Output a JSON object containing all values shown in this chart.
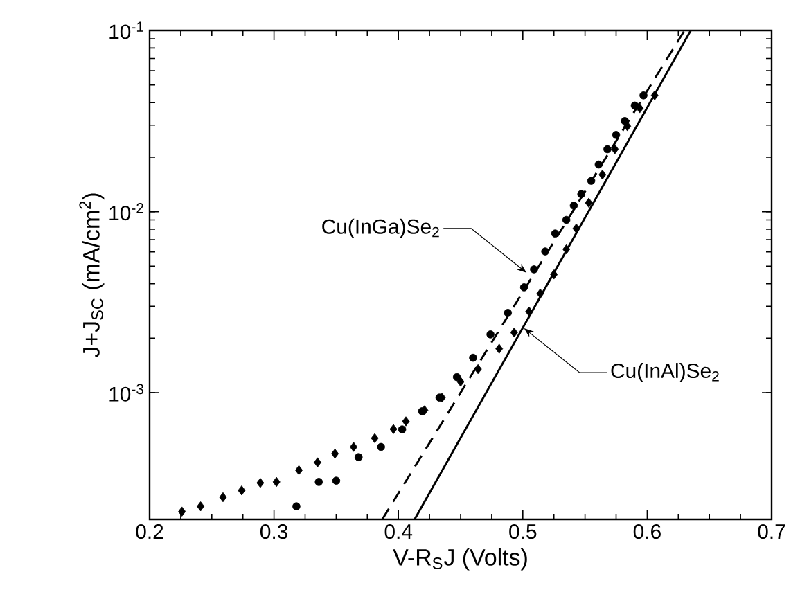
{
  "chart_data": {
    "type": "scatter",
    "xlabel": "V-R$_{S}$J (Volts)",
    "ylabel": "J+J$_{SC}$ (mA/cm$^{2}$)",
    "log": "y",
    "xlim": [
      0.2,
      0.7
    ],
    "ylim": [
      0.0002,
      0.1
    ],
    "xticks": [
      0.2,
      0.3,
      0.4,
      0.5,
      0.6,
      0.7
    ],
    "yticks": [
      {
        "value": 0.001,
        "label": "10$^{-3}$"
      },
      {
        "value": 0.01,
        "label": "10$^{-2}$"
      },
      {
        "value": 0.1,
        "label": "10$^{-1}$"
      }
    ],
    "grid": false,
    "series": [
      {
        "marker": "circle",
        "color": "#000000",
        "x": [
          0.318,
          0.336,
          0.35,
          0.368,
          0.386,
          0.403,
          0.419,
          0.433,
          0.447,
          0.46,
          0.474,
          0.488,
          0.501,
          0.509,
          0.518,
          0.526,
          0.535,
          0.541,
          0.547,
          0.555,
          0.561,
          0.568,
          0.575,
          0.582,
          0.59,
          0.597
        ],
        "values": [
          0.000236,
          0.000322,
          0.000327,
          0.000441,
          0.000502,
          0.000627,
          0.00079,
          0.00094,
          0.00122,
          0.00156,
          0.0021,
          0.00276,
          0.00382,
          0.0048,
          0.00603,
          0.00757,
          0.009,
          0.0108,
          0.0125,
          0.0148,
          0.0182,
          0.0221,
          0.0265,
          0.0316,
          0.0385,
          0.0438
        ]
      },
      {
        "marker": "diamond",
        "color": "#000000",
        "x": [
          0.226,
          0.241,
          0.259,
          0.274,
          0.289,
          0.302,
          0.32,
          0.335,
          0.349,
          0.364,
          0.381,
          0.396,
          0.406,
          0.421,
          0.435,
          0.45,
          0.464,
          0.481,
          0.493,
          0.505,
          0.514,
          0.525,
          0.535,
          0.543,
          0.553,
          0.564,
          0.574,
          0.584,
          0.594,
          0.606
        ],
        "values": [
          0.000221,
          0.000236,
          0.000265,
          0.000289,
          0.000318,
          0.000322,
          0.000374,
          0.000413,
          0.000461,
          0.000502,
          0.000561,
          0.00063,
          0.000695,
          0.0008,
          0.00094,
          0.00115,
          0.00135,
          0.00175,
          0.00215,
          0.00281,
          0.00353,
          0.0045,
          0.0062,
          0.00807,
          0.0112,
          0.016,
          0.0221,
          0.0296,
          0.0372,
          0.0438
        ]
      },
      {
        "type": "line",
        "line_style": "dashed",
        "marker": "none",
        "color": "#000000",
        "x": [
          0.387,
          0.63
        ],
        "values": [
          0.0002,
          0.1
        ]
      },
      {
        "type": "line",
        "line_style": "solid",
        "marker": "none",
        "color": "#000000",
        "x": [
          0.413,
          0.635
        ],
        "values": [
          0.0002,
          0.1
        ]
      }
    ],
    "annotations": [
      {
        "text": "Cu(InGa)Se$_{2}$",
        "x": 0.503,
        "y": 0.0046
      },
      {
        "text": "Cu(InAl)Se$_{2}$",
        "x": 0.501,
        "y": 0.00227
      }
    ]
  }
}
